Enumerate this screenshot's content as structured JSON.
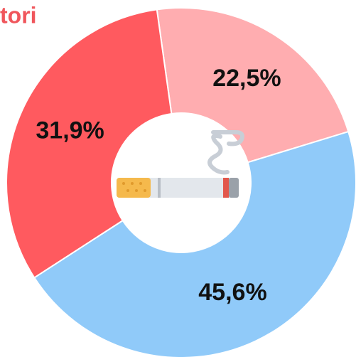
{
  "chart_data": {
    "type": "donut",
    "title": "tori",
    "categories": [
      "22,5%",
      "45,6%",
      "31,9%"
    ],
    "values": [
      22.5,
      45.6,
      31.9
    ],
    "value_labels": [
      "22,5%",
      "45,6%",
      "31,9%"
    ],
    "colors": [
      "#ffadb0",
      "#90caf9",
      "#ff5a5f"
    ]
  }
}
